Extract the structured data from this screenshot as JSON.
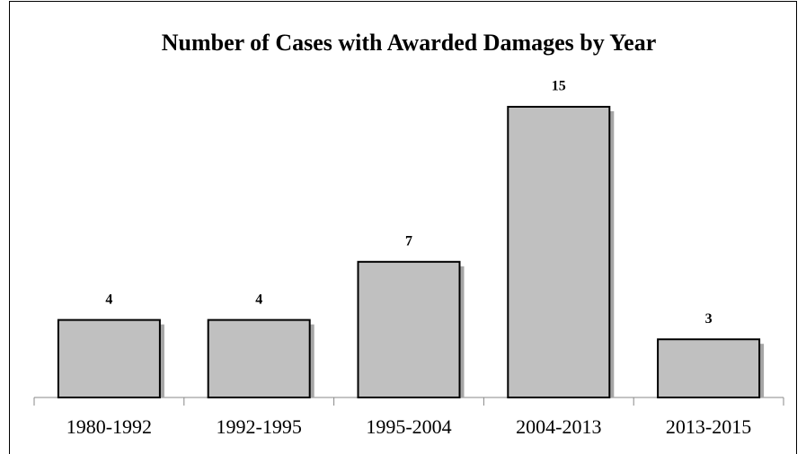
{
  "chart_data": {
    "type": "bar",
    "title": "Number of Cases with Awarded Damages by Year",
    "categories": [
      "1980-1992",
      "1992-1995",
      "1995-2004",
      "2004-2013",
      "2013-2015"
    ],
    "values": [
      4,
      4,
      7,
      15,
      3
    ],
    "color": "#c0c0c0"
  }
}
